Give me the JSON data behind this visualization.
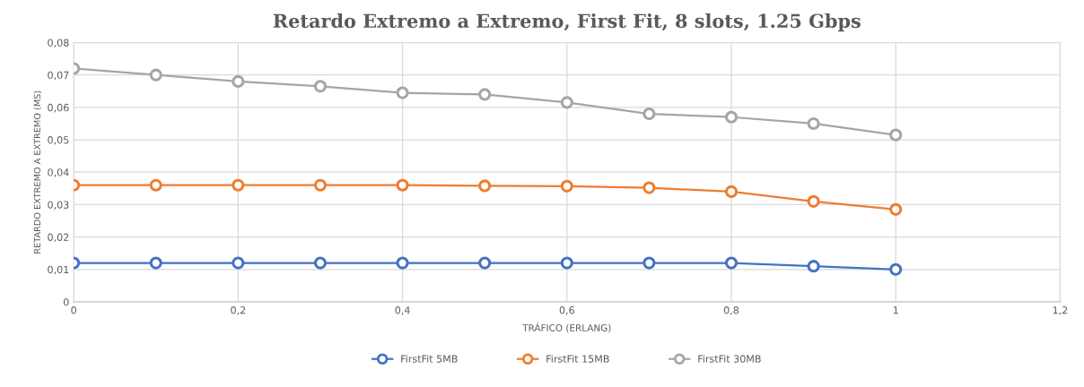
{
  "chart_data": {
    "type": "line",
    "title": "Retardo Extremo a Extremo, First Fit, 8 slots, 1.25 Gbps",
    "xlabel": "TRÁFICO (ERLANG)",
    "ylabel": "RETARDO EXTREMO A EXTREMO (MS)",
    "x": [
      0,
      0.1,
      0.2,
      0.3,
      0.4,
      0.5,
      0.6,
      0.7,
      0.8,
      0.9,
      1
    ],
    "series": [
      {
        "name": "FirstFit 5MB",
        "color": "#4472c4",
        "values": [
          0.012,
          0.012,
          0.012,
          0.012,
          0.012,
          0.012,
          0.012,
          0.012,
          0.012,
          0.011,
          0.01
        ]
      },
      {
        "name": "FirstFit 15MB",
        "color": "#ed7d31",
        "values": [
          0.036,
          0.036,
          0.036,
          0.036,
          0.036,
          0.0358,
          0.0357,
          0.0352,
          0.034,
          0.031,
          0.0285
        ]
      },
      {
        "name": "FirstFit 30MB",
        "color": "#a5a5a5",
        "values": [
          0.072,
          0.07,
          0.068,
          0.0665,
          0.0645,
          0.064,
          0.0615,
          0.058,
          0.057,
          0.055,
          0.0515
        ]
      }
    ],
    "xlim": [
      0,
      1.2
    ],
    "xticks": [
      0,
      {
        "value": 0.2,
        "label": "0,2"
      },
      {
        "value": 0.4,
        "label": "0,4"
      },
      {
        "value": 0.6,
        "label": "0,6"
      },
      {
        "value": 0.8,
        "label": "0,8"
      },
      1,
      {
        "value": 1.2,
        "label": "1,2"
      }
    ],
    "ylim": [
      0,
      0.08
    ],
    "yticks": [
      0,
      {
        "value": 0.01,
        "label": "0,01"
      },
      {
        "value": 0.02,
        "label": "0,02"
      },
      {
        "value": 0.03,
        "label": "0,03"
      },
      {
        "value": 0.04,
        "label": "0,04"
      },
      {
        "value": 0.05,
        "label": "0,05"
      },
      {
        "value": 0.06,
        "label": "0,06"
      },
      {
        "value": 0.07,
        "label": "0,07"
      },
      {
        "value": 0.08,
        "label": "0,08"
      }
    ],
    "grid": true,
    "legend": "bottom",
    "marker": "circle",
    "line_style": "solid"
  }
}
